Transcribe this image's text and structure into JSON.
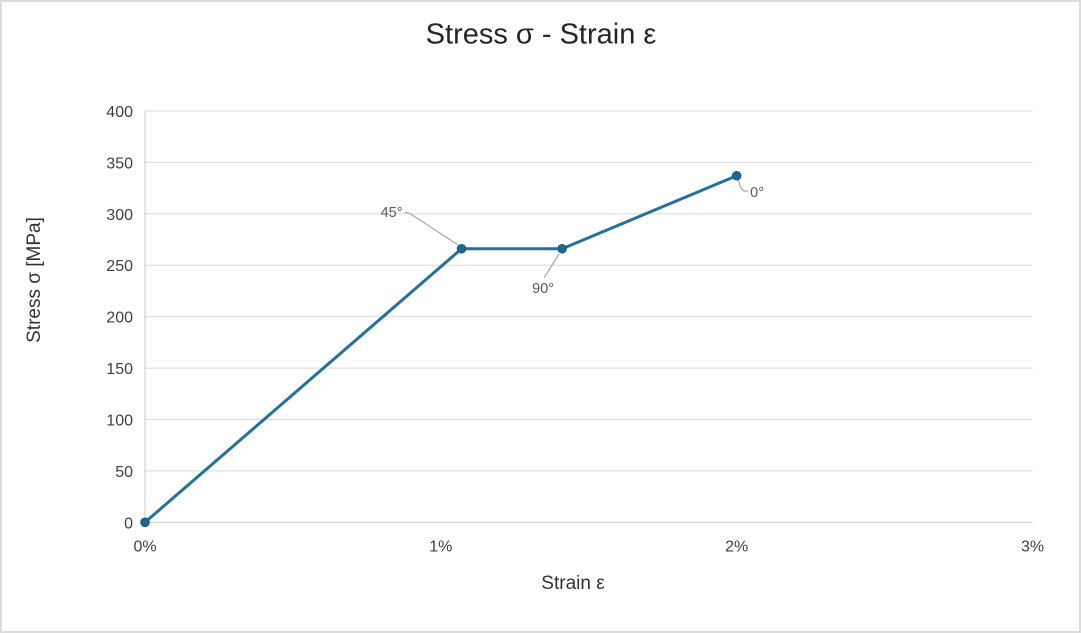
{
  "chart_data": {
    "type": "line",
    "title": "Stress σ - Strain ε",
    "xlabel": "Strain ε",
    "ylabel": "Stress σ [MPa]",
    "xlim": [
      0,
      3
    ],
    "ylim": [
      0,
      400
    ],
    "x_tick_labels": [
      "0%",
      "1%",
      "2%",
      "3%"
    ],
    "x_tick_values": [
      0,
      1,
      2,
      3
    ],
    "y_tick_labels": [
      "0",
      "50",
      "100",
      "150",
      "200",
      "250",
      "300",
      "350",
      "400"
    ],
    "y_tick_values": [
      0,
      50,
      100,
      150,
      200,
      250,
      300,
      350,
      400
    ],
    "grid": "horizontal-only",
    "legend": "none",
    "series": [
      {
        "name": "stress-strain-curve",
        "marker": "circle",
        "points": [
          {
            "x_percent": 0,
            "y_mpa": 0,
            "label": ""
          },
          {
            "x_percent": 1.07,
            "y_mpa": 266,
            "label": "45°"
          },
          {
            "x_percent": 1.41,
            "y_mpa": 266,
            "label": "90°"
          },
          {
            "x_percent": 2.0,
            "y_mpa": 337,
            "label": "0°"
          }
        ]
      }
    ],
    "point_annotations": [
      "45°",
      "90°",
      "0°"
    ]
  },
  "colors": {
    "line": "#24719F",
    "marker_fill": "#1F6690",
    "marker_stroke": "#175C86",
    "gridline": "#D9D9D9",
    "axis_line": "#C8C8C8",
    "leader_line": "#A6A6A6",
    "data_label": "#595959",
    "tick_label": "#404040",
    "title": "#262626",
    "axis_title": "#333333"
  }
}
